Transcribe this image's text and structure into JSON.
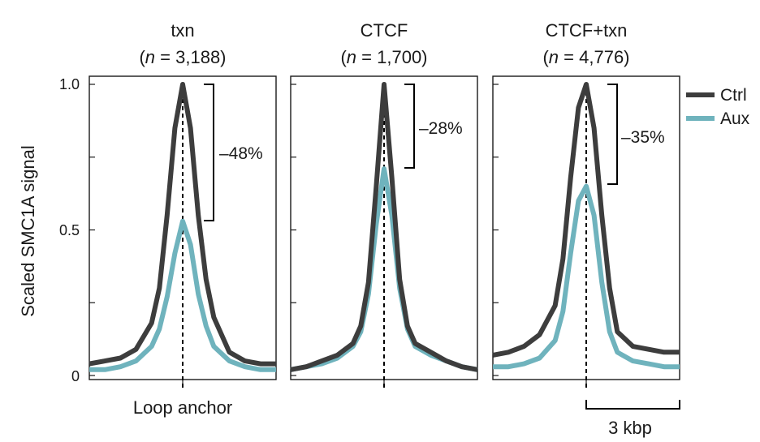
{
  "chart_data": {
    "type": "line",
    "ylabel": "Scaled SMC1A signal",
    "xlabel": "Loop anchor",
    "ylim": [
      0,
      1.0
    ],
    "yticks": [
      {
        "value": 0,
        "label": "0"
      },
      {
        "value": 0.5,
        "label": "0.5"
      },
      {
        "value": 1.0,
        "label": "1.0"
      }
    ],
    "x_range_kbp": [
      -3,
      3
    ],
    "scale_bar": "3 kbp",
    "legend": [
      {
        "name": "Ctrl",
        "color": "#3d3d3d"
      },
      {
        "name": "Aux",
        "color": "#6fb3bd"
      }
    ],
    "panels": [
      {
        "title": "txn",
        "subtitle_n": "n",
        "subtitle_value": "= 3,188)",
        "reduction": "–48%",
        "x": [
          -3,
          -2.5,
          -2,
          -1.5,
          -1,
          -0.75,
          -0.5,
          -0.25,
          0,
          0.25,
          0.5,
          0.75,
          1,
          1.5,
          2,
          2.5,
          3
        ],
        "series": [
          {
            "name": "Ctrl",
            "values": [
              0.04,
              0.05,
              0.06,
              0.09,
              0.18,
              0.3,
              0.55,
              0.85,
              1.0,
              0.85,
              0.55,
              0.33,
              0.2,
              0.08,
              0.05,
              0.04,
              0.04
            ]
          },
          {
            "name": "Aux",
            "values": [
              0.02,
              0.02,
              0.03,
              0.05,
              0.1,
              0.16,
              0.27,
              0.42,
              0.53,
              0.45,
              0.28,
              0.17,
              0.1,
              0.05,
              0.03,
              0.02,
              0.02
            ]
          }
        ]
      },
      {
        "title": "CTCF",
        "subtitle_n": "n",
        "subtitle_value": "= 1,700)",
        "reduction": "–28%",
        "x": [
          -3,
          -2.5,
          -2,
          -1.5,
          -1,
          -0.75,
          -0.5,
          -0.25,
          0,
          0.25,
          0.5,
          0.75,
          1,
          1.5,
          2,
          2.5,
          3
        ],
        "series": [
          {
            "name": "Ctrl",
            "values": [
              0.02,
              0.03,
              0.05,
              0.07,
              0.11,
              0.17,
              0.32,
              0.65,
              1.0,
              0.68,
              0.33,
              0.17,
              0.11,
              0.08,
              0.05,
              0.03,
              0.02
            ]
          },
          {
            "name": "Aux",
            "values": [
              0.02,
              0.03,
              0.04,
              0.06,
              0.1,
              0.15,
              0.28,
              0.52,
              0.71,
              0.55,
              0.3,
              0.16,
              0.1,
              0.07,
              0.05,
              0.03,
              0.02
            ]
          }
        ]
      },
      {
        "title": "CTCF+txn",
        "subtitle_n": "n",
        "subtitle_value": "= 4,776)",
        "reduction": "–35%",
        "x": [
          -3,
          -2.5,
          -2,
          -1.5,
          -1,
          -0.75,
          -0.5,
          -0.25,
          0,
          0.25,
          0.5,
          0.75,
          1,
          1.5,
          2,
          2.5,
          3
        ],
        "series": [
          {
            "name": "Ctrl",
            "values": [
              0.07,
              0.08,
              0.1,
              0.14,
              0.24,
              0.4,
              0.68,
              0.92,
              1.0,
              0.85,
              0.55,
              0.3,
              0.15,
              0.1,
              0.09,
              0.08,
              0.08
            ]
          },
          {
            "name": "Aux",
            "values": [
              0.03,
              0.03,
              0.04,
              0.06,
              0.12,
              0.22,
              0.42,
              0.6,
              0.65,
              0.55,
              0.32,
              0.15,
              0.08,
              0.05,
              0.04,
              0.03,
              0.03
            ]
          }
        ]
      }
    ]
  }
}
